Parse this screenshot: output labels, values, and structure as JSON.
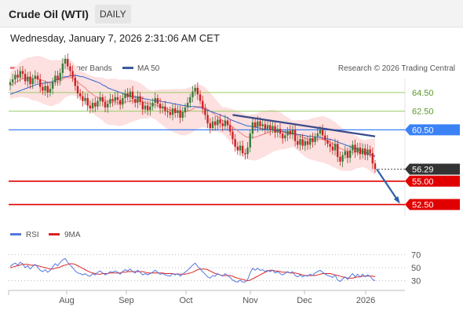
{
  "header": {
    "title": "Crude Oil (WTI)",
    "timeframe": "DAILY",
    "datetime": "Wednesday, January 7, 2026 2:31:06 AM CET"
  },
  "credit": "Research © 2026 Trading Central",
  "colors": {
    "up": "#3a7a3a",
    "down": "#cc2222",
    "bollinger_fill": "#fde0e0",
    "ma20": "#f08080",
    "ma50": "#3366cc",
    "resistance_green": "#99cc66",
    "resistance_blue": "#3b82f6",
    "support_red": "#e00000",
    "trendline": "#3a4a8a",
    "rsi": "#5577dd",
    "rsi_ma": "#dd2222"
  },
  "chart_data": [
    {
      "type": "candlestick",
      "legend": [
        {
          "name": "MA 20 + Bollinger Bands",
          "color": "#f08080"
        },
        {
          "name": "MA 50",
          "color": "#3a5a9a"
        }
      ],
      "x_tick_labels": [
        "Aug",
        "Sep",
        "Oct",
        "Nov",
        "Dec",
        "2026"
      ],
      "ylim": [
        51.2,
        66.0
      ],
      "level_lines": [
        {
          "value": 64.5,
          "label": "64.50",
          "color": "#99cc66",
          "style": "line"
        },
        {
          "value": 62.5,
          "label": "62.50",
          "color": "#99cc66",
          "style": "line"
        },
        {
          "value": 60.5,
          "label": "60.50",
          "color": "#3b82f6",
          "style": "boxed"
        },
        {
          "value": 56.29,
          "label": "56.29",
          "color": "#333333",
          "style": "current"
        },
        {
          "value": 55.0,
          "label": "55.00",
          "color": "#e00000",
          "style": "boxed"
        },
        {
          "value": 52.5,
          "label": "52.50",
          "color": "#e00000",
          "style": "boxed"
        }
      ],
      "closes": [
        65.6,
        65.9,
        66.4,
        66.1,
        66.8,
        66.5,
        65.7,
        66.2,
        65.4,
        66.0,
        66.3,
        65.9,
        65.1,
        64.7,
        65.2,
        64.5,
        64.9,
        65.6,
        66.3,
        65.8,
        66.6,
        67.6,
        68.1,
        67.3,
        66.8,
        66.1,
        65.2,
        64.4,
        64.1,
        63.6,
        63.9,
        63.1,
        62.8,
        63.4,
        63.0,
        63.6,
        64.0,
        63.5,
        62.9,
        63.3,
        63.8,
        63.6,
        64.0,
        63.7,
        63.2,
        63.9,
        64.4,
        64.0,
        64.6,
        63.8,
        63.4,
        64.1,
        63.5,
        62.7,
        63.1,
        62.6,
        63.0,
        63.4,
        63.9,
        63.3,
        62.8,
        63.0,
        62.5,
        62.4,
        62.1,
        62.8,
        62.3,
        62.6,
        61.8,
        62.4,
        62.9,
        63.4,
        64.0,
        64.6,
        65.0,
        64.3,
        63.6,
        62.8,
        62.1,
        61.2,
        60.7,
        61.4,
        61.0,
        61.6,
        61.2,
        60.9,
        61.5,
        61.0,
        60.3,
        59.5,
        58.7,
        58.3,
        58.8,
        58.0,
        57.9,
        58.6,
        60.1,
        61.3,
        60.8,
        61.4,
        60.9,
        61.1,
        60.6,
        61.0,
        60.5,
        60.9,
        60.2,
        60.6,
        60.1,
        59.6,
        59.9,
        60.4,
        60.0,
        60.5,
        59.3,
        58.9,
        59.5,
        58.8,
        59.3,
        58.9,
        59.6,
        59.2,
        59.8,
        60.1,
        60.5,
        59.9,
        59.4,
        59.0,
        58.7,
        58.3,
        59.0,
        57.6,
        57.1,
        57.8,
        58.2,
        57.5,
        58.3,
        58.9,
        58.1,
        58.6,
        57.9,
        58.5,
        57.8,
        58.4,
        58.0,
        56.9,
        56.3
      ],
      "series": [
        {
          "name": "MA 20 + Bollinger Bands",
          "values": [
            65.2,
            65.4,
            65.6,
            65.7,
            65.9,
            66.0,
            66.0,
            66.1,
            66.0,
            66.0,
            66.0,
            66.0,
            65.9,
            65.8,
            65.7,
            65.6,
            65.5,
            65.5,
            65.6,
            65.6,
            65.7,
            65.9,
            66.1,
            66.1,
            66.1,
            66.0,
            65.8,
            65.6,
            65.4,
            65.2,
            65.0,
            64.7,
            64.5,
            64.3,
            64.1,
            64.0,
            63.9,
            63.8,
            63.6,
            63.5,
            63.5,
            63.5,
            63.5,
            63.4,
            63.4,
            63.4,
            63.5,
            63.5,
            63.6,
            63.6,
            63.6,
            63.6,
            63.6,
            63.5,
            63.4,
            63.3,
            63.3,
            63.2,
            63.2,
            63.1,
            63.0,
            62.9,
            62.8,
            62.7,
            62.6,
            62.6,
            62.5,
            62.5,
            62.4,
            62.4,
            62.4,
            62.5,
            62.6,
            62.7,
            62.9,
            63.0,
            63.0,
            63.0,
            62.9,
            62.7,
            62.5,
            62.3,
            62.1,
            61.9,
            61.7,
            61.5,
            61.4,
            61.2,
            61.0,
            60.8,
            60.6,
            60.4,
            60.2,
            60.0,
            59.8,
            59.7,
            59.7,
            59.7,
            59.7,
            59.8,
            59.9,
            60.0,
            60.1,
            60.2,
            60.3,
            60.4,
            60.4,
            60.4,
            60.4,
            60.3,
            60.2,
            60.2,
            60.1,
            60.1,
            60.0,
            59.9,
            59.8,
            59.7,
            59.6,
            59.5,
            59.5,
            59.5,
            59.5,
            59.5,
            59.5,
            59.5,
            59.4,
            59.3,
            59.2,
            59.0,
            58.9,
            58.7,
            58.5,
            58.4,
            58.3,
            58.2,
            58.1,
            58.1,
            58.1,
            58.1,
            58.0,
            58.0,
            57.9,
            57.9,
            57.8,
            57.7,
            57.6
          ]
        },
        {
          "name": "MA 50",
          "values": [
            64.3,
            64.4,
            64.5,
            64.6,
            64.7,
            64.8,
            64.9,
            65.0,
            65.1,
            65.2,
            65.3,
            65.4,
            65.4,
            65.5,
            65.5,
            65.6,
            65.6,
            65.7,
            65.8,
            65.9,
            66.0,
            66.1,
            66.2,
            66.2,
            66.3,
            66.3,
            66.3,
            66.3,
            66.2,
            66.2,
            66.1,
            66.0,
            65.9,
            65.8,
            65.7,
            65.6,
            65.5,
            65.3,
            65.2,
            65.0,
            64.9,
            64.8,
            64.7,
            64.6,
            64.5,
            64.4,
            64.3,
            64.2,
            64.1,
            64.1,
            64.0,
            64.0,
            63.9,
            63.9,
            63.8,
            63.8,
            63.7,
            63.7,
            63.6,
            63.6,
            63.6,
            63.5,
            63.5,
            63.4,
            63.4,
            63.3,
            63.3,
            63.2,
            63.2,
            63.1,
            63.1,
            63.0,
            63.0,
            63.0,
            63.0,
            62.9,
            62.9,
            62.8,
            62.7,
            62.6,
            62.5,
            62.4,
            62.3,
            62.2,
            62.1,
            62.0,
            61.9,
            61.8,
            61.6,
            61.5,
            61.4,
            61.3,
            61.2,
            61.1,
            61.0,
            60.9,
            60.9,
            60.8,
            60.8,
            60.7,
            60.7,
            60.6,
            60.6,
            60.5,
            60.5,
            60.5,
            60.4,
            60.4,
            60.4,
            60.3,
            60.3,
            60.2,
            60.2,
            60.1,
            60.1,
            60.0,
            60.0,
            59.9,
            59.9,
            59.8,
            59.8,
            59.8,
            59.7,
            59.7,
            59.7,
            59.6,
            59.6,
            59.5,
            59.5,
            59.4,
            59.3,
            59.2,
            59.1,
            59.0,
            58.9,
            58.8,
            58.7,
            58.6,
            58.5,
            58.4,
            58.3,
            58.2,
            58.1,
            58.0,
            57.9,
            57.8,
            57.7
          ]
        }
      ],
      "projection": {
        "from": 56.3,
        "to": 52.8
      }
    },
    {
      "type": "line",
      "legend": [
        {
          "name": "RSI",
          "color": "#5577dd"
        },
        {
          "name": "9MA",
          "color": "#dd2222"
        }
      ],
      "ylim": [
        20,
        80
      ],
      "y_ticks": [
        70,
        50,
        30
      ],
      "y_tick_labels": [
        "70",
        "50",
        "30"
      ],
      "series": [
        {
          "name": "RSI",
          "values": [
            52,
            55,
            57,
            54,
            58,
            56,
            50,
            53,
            48,
            52,
            55,
            51,
            46,
            44,
            47,
            43,
            46,
            51,
            56,
            53,
            58,
            62,
            64,
            58,
            54,
            50,
            45,
            42,
            41,
            39,
            41,
            38,
            37,
            41,
            39,
            43,
            45,
            42,
            39,
            41,
            44,
            43,
            45,
            43,
            40,
            44,
            47,
            45,
            48,
            44,
            42,
            46,
            43,
            39,
            41,
            39,
            41,
            43,
            46,
            43,
            40,
            41,
            39,
            38,
            37,
            41,
            39,
            41,
            37,
            40,
            43,
            46,
            50,
            54,
            57,
            52,
            48,
            44,
            40,
            36,
            34,
            38,
            37,
            41,
            39,
            37,
            41,
            38,
            35,
            31,
            29,
            28,
            31,
            28,
            28,
            32,
            42,
            49,
            46,
            49,
            46,
            47,
            44,
            46,
            44,
            46,
            42,
            44,
            41,
            39,
            41,
            44,
            42,
            44,
            38,
            36,
            39,
            36,
            38,
            37,
            40,
            38,
            42,
            44,
            46,
            43,
            40,
            38,
            37,
            35,
            39,
            31,
            29,
            33,
            36,
            32,
            37,
            41,
            36,
            40,
            36,
            40,
            36,
            39,
            37,
            32,
            30
          ]
        },
        {
          "name": "9MA",
          "values": [
            50,
            51,
            52,
            53,
            54,
            55,
            55,
            55,
            54,
            54,
            54,
            53,
            52,
            51,
            50,
            49,
            48,
            48,
            49,
            50,
            51,
            53,
            54,
            55,
            56,
            56,
            55,
            53,
            51,
            49,
            47,
            45,
            43,
            42,
            41,
            40,
            40,
            41,
            41,
            41,
            42,
            42,
            42,
            42,
            42,
            43,
            43,
            44,
            44,
            44,
            44,
            44,
            44,
            44,
            43,
            42,
            42,
            42,
            42,
            42,
            42,
            42,
            41,
            41,
            41,
            41,
            40,
            40,
            40,
            40,
            40,
            41,
            42,
            43,
            45,
            47,
            48,
            48,
            48,
            47,
            45,
            43,
            41,
            40,
            39,
            38,
            38,
            38,
            38,
            37,
            35,
            34,
            33,
            32,
            31,
            30,
            31,
            33,
            35,
            37,
            39,
            41,
            43,
            45,
            46,
            46,
            45,
            45,
            44,
            43,
            43,
            43,
            42,
            42,
            42,
            41,
            40,
            39,
            38,
            38,
            38,
            38,
            38,
            39,
            40,
            41,
            41,
            41,
            41,
            40,
            39,
            38,
            37,
            36,
            35,
            34,
            34,
            34,
            35,
            36,
            36,
            37,
            37,
            37,
            37,
            37,
            36
          ]
        }
      ]
    }
  ]
}
